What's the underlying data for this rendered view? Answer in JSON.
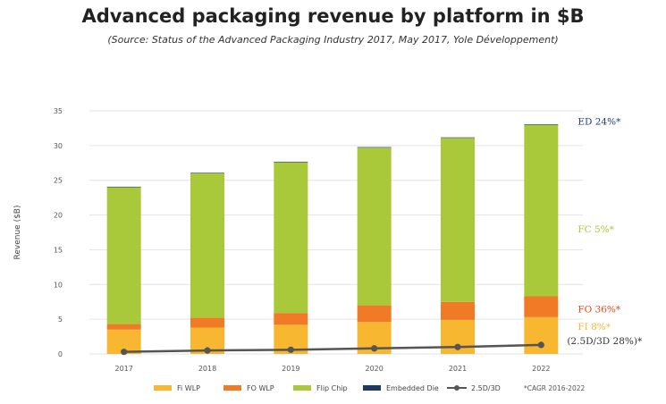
{
  "title": "Advanced packaging revenue by platform in $B",
  "subtitle": "(Source: Status of the Advanced Packaging Industry 2017, May 2017, Yole Développement)",
  "chart_data": {
    "type": "bar",
    "stacked": true,
    "categories": [
      "2017",
      "2018",
      "2019",
      "2020",
      "2021",
      "2022"
    ],
    "ylabel": "Revenue ($B)",
    "ylim": [
      0,
      35
    ],
    "yticks": [
      0,
      5,
      10,
      15,
      20,
      25,
      30,
      35
    ],
    "grid": true,
    "series": [
      {
        "name": "Fi WLP",
        "color": "#f7b731",
        "values": [
          3.5,
          3.8,
          4.2,
          4.6,
          4.9,
          5.3
        ]
      },
      {
        "name": "FO WLP",
        "color": "#f07a26",
        "values": [
          0.8,
          1.4,
          1.7,
          2.4,
          2.6,
          3.0
        ]
      },
      {
        "name": "Flip Chip",
        "color": "#a9c93b",
        "values": [
          19.7,
          20.8,
          21.7,
          22.7,
          23.6,
          24.7
        ]
      },
      {
        "name": "Embedded Die",
        "color": "#1f3864",
        "values": [
          0.02,
          0.03,
          0.03,
          0.04,
          0.05,
          0.06
        ]
      }
    ],
    "line_series": {
      "name": "2.5D/3D",
      "color": "#555555",
      "values": [
        0.3,
        0.5,
        0.6,
        0.8,
        1.0,
        1.3
      ]
    },
    "annotations": [
      {
        "text": "ED 24%*",
        "color": "#1f3a8a",
        "y": 33.5
      },
      {
        "text": "FC 5%*",
        "color": "#a9c93b",
        "y": 18
      },
      {
        "text": "FO 36%*",
        "color": "#e04a1a",
        "y": 6.5
      },
      {
        "text": "FI 8%*",
        "color": "#f7b731",
        "y": 4.0
      },
      {
        "text": "(2.5D/3D 28%)*",
        "color": "#333333",
        "y": 1.9
      }
    ],
    "legend": {
      "position": "bottom",
      "items": [
        "Fi WLP",
        "FO WLP",
        "Flip Chip",
        "Embedded Die",
        "2.5D/3D"
      ],
      "note": "*CAGR 2016-2022"
    }
  }
}
